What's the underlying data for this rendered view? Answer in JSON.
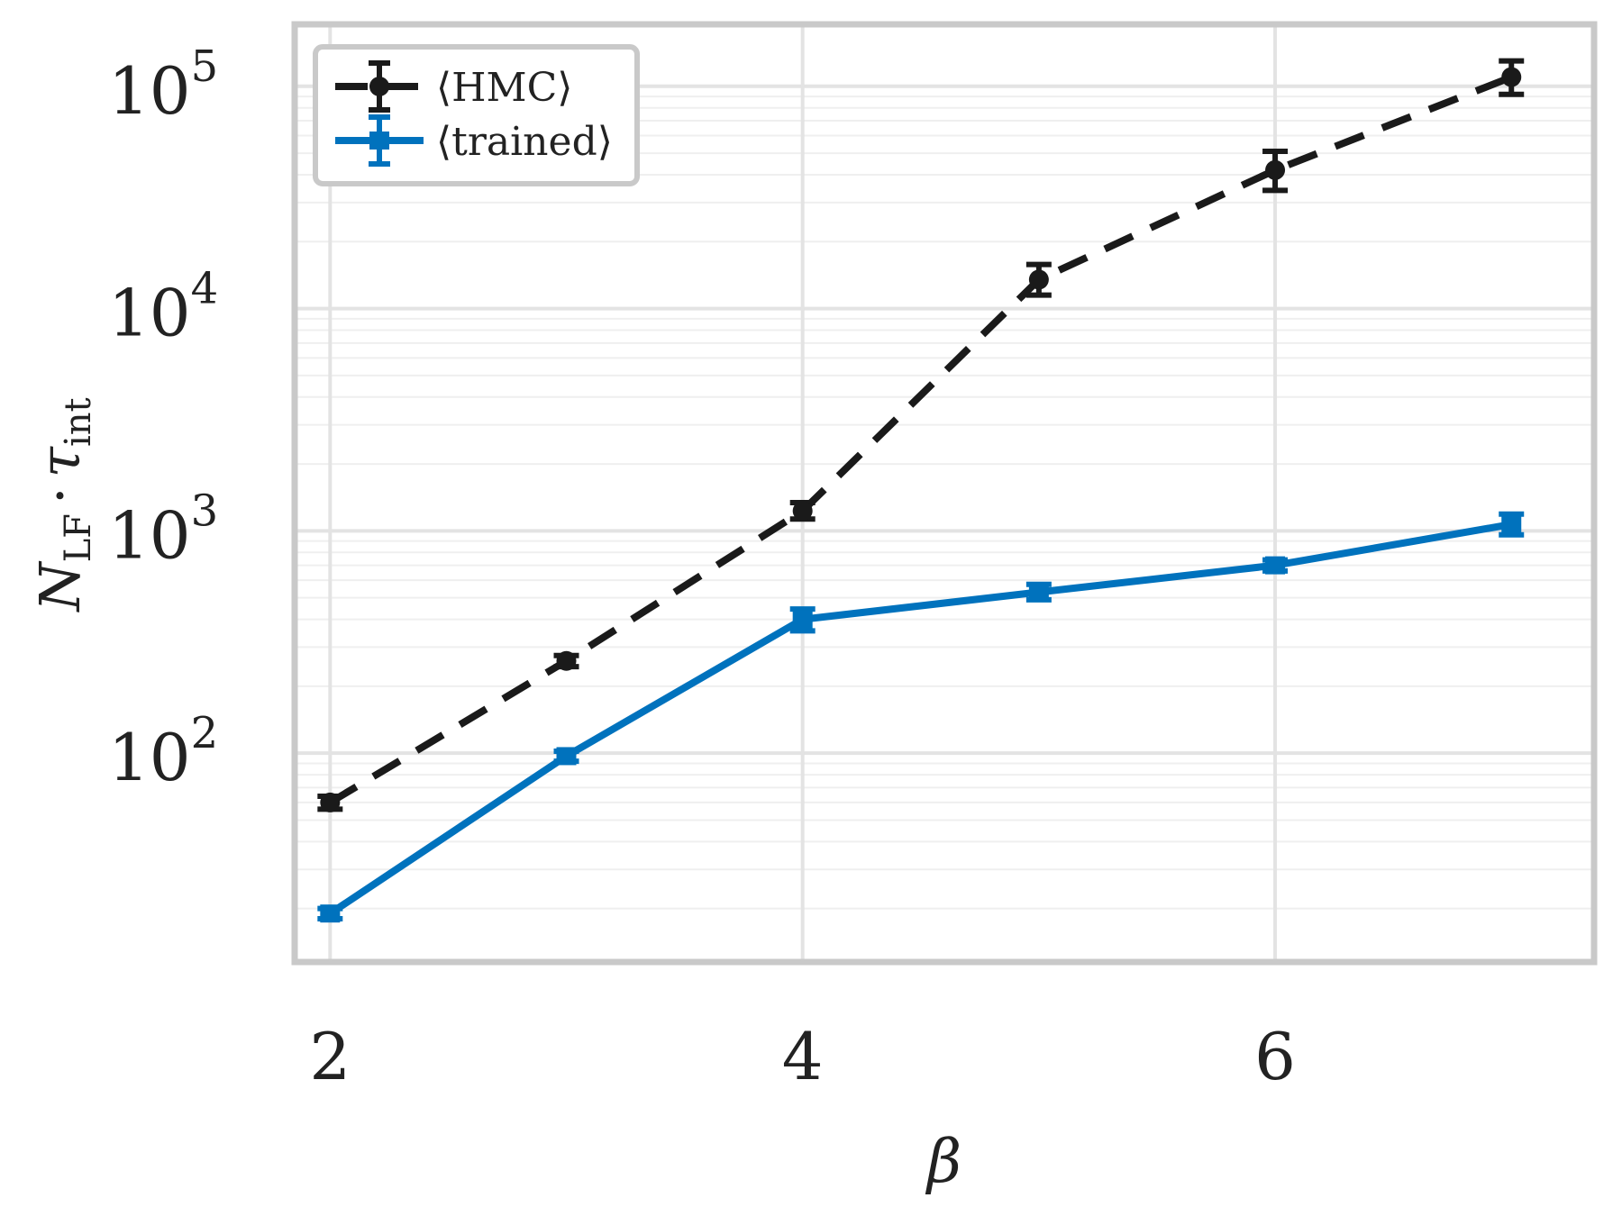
{
  "chart_data": {
    "type": "line",
    "title": "",
    "xlabel": "β",
    "ylabel_main": "N",
    "ylabel_main_sub": "LF",
    "ylabel_dot": "·",
    "ylabel_tau": "τ",
    "ylabel_tau_sub": "int",
    "xlim": [
      1.85,
      7.35
    ],
    "ylim": [
      11.5,
      190000
    ],
    "yscale": "log",
    "grid": true,
    "legend_position": "top-left",
    "x_ticks": [
      2,
      4,
      6
    ],
    "x_tick_labels": [
      "2",
      "4",
      "6"
    ],
    "y_ticks": [
      100,
      1000,
      10000,
      100000
    ],
    "y_tick_bases": [
      "10",
      "10",
      "10",
      "10"
    ],
    "y_tick_exponents": [
      "2",
      "3",
      "4",
      "5"
    ],
    "series": [
      {
        "name": "⟨HMC⟩",
        "color": "#1a1a1a",
        "line_style": "dashed",
        "marker": "circle",
        "x": [
          2,
          3,
          4,
          5,
          6,
          7
        ],
        "y": [
          60,
          260,
          1230,
          13500,
          42000,
          110000
        ],
        "y_low": [
          56,
          245,
          1130,
          11500,
          34000,
          92000
        ],
        "y_high": [
          64,
          275,
          1340,
          15800,
          51000,
          130000
        ]
      },
      {
        "name": "⟨trained⟩",
        "color": "#0072bd",
        "line_style": "solid",
        "marker": "square",
        "x": [
          2,
          3,
          4,
          5,
          6,
          7
        ],
        "y": [
          19,
          97,
          400,
          530,
          700,
          1070
        ],
        "y_low": [
          18,
          92,
          355,
          490,
          660,
          960
        ],
        "y_high": [
          20,
          102,
          445,
          575,
          740,
          1190
        ]
      }
    ]
  }
}
